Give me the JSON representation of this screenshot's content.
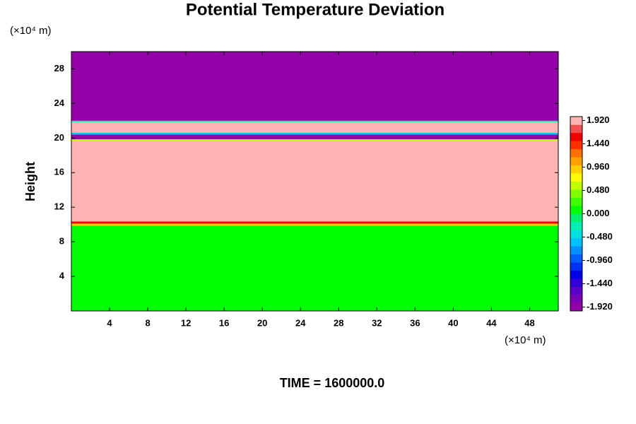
{
  "chart_data": {
    "type": "contour",
    "title": "Potential Temperature Deviation",
    "ylabel": "Height",
    "xunit": "(×10⁴ m)",
    "yunit": "(×10⁴ m)",
    "footer": "TIME = 1600000.0",
    "xlim": [
      0,
      51
    ],
    "ylim": [
      0,
      30
    ],
    "xticks": [
      4,
      8,
      12,
      16,
      20,
      24,
      28,
      32,
      36,
      40,
      44,
      48
    ],
    "yticks": [
      4,
      8,
      12,
      16,
      20,
      24,
      28
    ],
    "clim": [
      -2.0,
      2.0
    ],
    "cticks": [
      {
        "value": 1.92,
        "label": "1.920"
      },
      {
        "value": 1.44,
        "label": "1.440"
      },
      {
        "value": 0.96,
        "label": "0.960"
      },
      {
        "value": 0.48,
        "label": "0.480"
      },
      {
        "value": 0,
        "label": "0.000"
      },
      {
        "value": -0.48,
        "label": "-0.480"
      },
      {
        "value": -0.96,
        "label": "-0.960"
      },
      {
        "value": -1.44,
        "label": "-1.440"
      },
      {
        "value": -1.92,
        "label": "-1.920"
      }
    ],
    "colors": [
      "#9400a8",
      "#7a00b8",
      "#5a00c8",
      "#3000d8",
      "#0000e6",
      "#0030f0",
      "#0060ff",
      "#0090ff",
      "#00c0ff",
      "#00e0e0",
      "#00f0b0",
      "#00f070",
      "#00ff00",
      "#40ff00",
      "#80ff00",
      "#c0ff00",
      "#ffff00",
      "#ffd000",
      "#ffa000",
      "#ff7000",
      "#ff3000",
      "#f00000",
      "#f05050",
      "#ffb4b4"
    ],
    "layers": [
      {
        "from": 0,
        "to": 9.85,
        "value": 0.05
      },
      {
        "from": 9.85,
        "to": 10.1,
        "value": 0.9
      },
      {
        "from": 10.1,
        "to": 10.35,
        "value": 1.6
      },
      {
        "from": 10.35,
        "to": 19.65,
        "value": 2.0
      },
      {
        "from": 19.65,
        "to": 19.85,
        "value": 0.5
      },
      {
        "from": 19.85,
        "to": 20.4,
        "value": -1.95
      },
      {
        "from": 20.4,
        "to": 20.6,
        "value": -0.6
      },
      {
        "from": 20.6,
        "to": 21.85,
        "value": 2.0
      },
      {
        "from": 21.85,
        "to": 22.0,
        "value": -0.3
      },
      {
        "from": 22.0,
        "to": 30,
        "value": -1.95
      }
    ]
  }
}
